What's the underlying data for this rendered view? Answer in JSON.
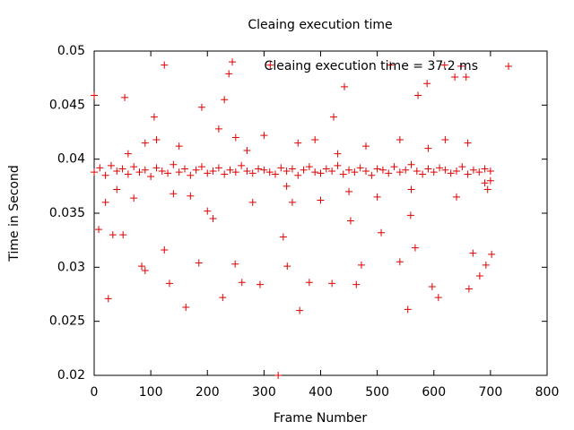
{
  "chart_data": {
    "type": "scatter",
    "title": "Cleaing execution time",
    "x_label": "Frame Number",
    "y_label": "Time in Second",
    "xlim": [
      0,
      800
    ],
    "xticks": [
      0,
      100,
      200,
      300,
      400,
      500,
      600,
      700,
      800
    ],
    "ylim": [
      0.02,
      0.05
    ],
    "yticks": [
      0.02,
      0.025,
      0.03,
      0.035,
      0.04,
      0.045,
      0.05
    ],
    "grid": false,
    "legend": "top-right",
    "series": [
      {
        "name": "Cleaing execution time = 37.2 ms",
        "color": "#e00000",
        "x": [
          0,
          10,
          20,
          30,
          40,
          50,
          60,
          70,
          80,
          90,
          100,
          110,
          120,
          130,
          140,
          150,
          160,
          170,
          180,
          190,
          200,
          210,
          220,
          230,
          240,
          250,
          260,
          270,
          280,
          290,
          300,
          310,
          320,
          330,
          340,
          350,
          360,
          370,
          380,
          390,
          400,
          410,
          420,
          430,
          440,
          450,
          460,
          470,
          480,
          490,
          500,
          510,
          520,
          530,
          540,
          550,
          560,
          570,
          580,
          590,
          600,
          610,
          620,
          630,
          640,
          650,
          660,
          670,
          680,
          690,
          700,
          20,
          40,
          60,
          70,
          90,
          110,
          150,
          140,
          170,
          200,
          210,
          220,
          250,
          270,
          280,
          300,
          340,
          350,
          360,
          390,
          400,
          430,
          450,
          480,
          500,
          540,
          560,
          590,
          620,
          640,
          660,
          690,
          700,
          0,
          8,
          25,
          33,
          51,
          54,
          124,
          106,
          84,
          90,
          124,
          133,
          162,
          185,
          190,
          230,
          238,
          244,
          249,
          227,
          261,
          293,
          311,
          325,
          334,
          341,
          363,
          380,
          420,
          423,
          442,
          453,
          463,
          472,
          507,
          523,
          540,
          554,
          559,
          567,
          572,
          588,
          597,
          608,
          619,
          637,
          648,
          657,
          662,
          669,
          681,
          692,
          702,
          695
        ],
        "values": [
          0.0388,
          0.0392,
          0.0385,
          0.0394,
          0.0389,
          0.0391,
          0.0386,
          0.0393,
          0.0388,
          0.039,
          0.0384,
          0.0392,
          0.0389,
          0.0387,
          0.0395,
          0.0388,
          0.0391,
          0.0385,
          0.039,
          0.0393,
          0.0387,
          0.0389,
          0.0392,
          0.0386,
          0.039,
          0.0388,
          0.0394,
          0.0389,
          0.0387,
          0.0391,
          0.039,
          0.0388,
          0.0386,
          0.0392,
          0.0389,
          0.0391,
          0.0385,
          0.039,
          0.0393,
          0.0388,
          0.0387,
          0.0391,
          0.0389,
          0.0394,
          0.0386,
          0.039,
          0.0388,
          0.0392,
          0.0389,
          0.0385,
          0.0391,
          0.039,
          0.0387,
          0.0393,
          0.0388,
          0.039,
          0.0395,
          0.0389,
          0.0386,
          0.0391,
          0.0388,
          0.0392,
          0.039,
          0.0387,
          0.0389,
          0.0393,
          0.0386,
          0.039,
          0.0388,
          0.0391,
          0.0389,
          0.036,
          0.0372,
          0.0405,
          0.0364,
          0.0415,
          0.0418,
          0.0412,
          0.0368,
          0.0366,
          0.0352,
          0.0345,
          0.0428,
          0.042,
          0.0408,
          0.036,
          0.0422,
          0.0375,
          0.036,
          0.0415,
          0.0418,
          0.0362,
          0.0405,
          0.037,
          0.0412,
          0.0365,
          0.0418,
          0.0372,
          0.041,
          0.0418,
          0.0365,
          0.0415,
          0.0378,
          0.038,
          0.0459,
          0.0335,
          0.0271,
          0.033,
          0.033,
          0.0457,
          0.0487,
          0.0439,
          0.0301,
          0.0297,
          0.0316,
          0.0285,
          0.0263,
          0.0304,
          0.0448,
          0.0455,
          0.0479,
          0.049,
          0.0303,
          0.0272,
          0.0286,
          0.0284,
          0.0487,
          0.02,
          0.0328,
          0.0301,
          0.026,
          0.0286,
          0.0285,
          0.0439,
          0.0467,
          0.0343,
          0.0284,
          0.0302,
          0.0332,
          0.0487,
          0.0305,
          0.0261,
          0.0348,
          0.0318,
          0.0459,
          0.047,
          0.0282,
          0.0272,
          0.0487,
          0.0476,
          0.0486,
          0.0476,
          0.028,
          0.0313,
          0.0292,
          0.0302,
          0.0312,
          0.0372
        ]
      }
    ]
  }
}
